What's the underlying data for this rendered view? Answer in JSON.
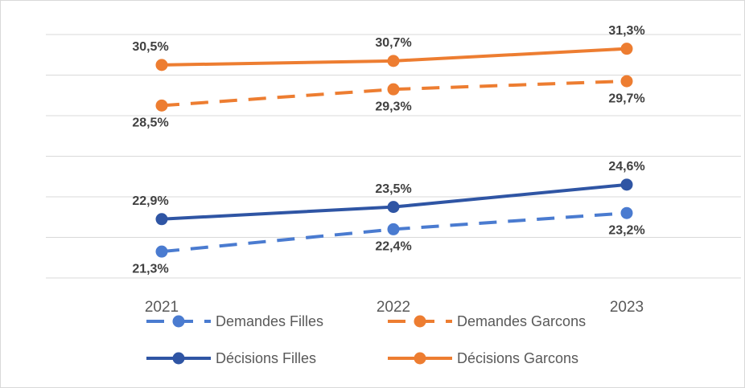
{
  "chart_data": {
    "type": "line",
    "categories": [
      "2021",
      "2022",
      "2023"
    ],
    "series": [
      {
        "name": "Demandes Filles",
        "color": "#4a7bd0",
        "dash": true,
        "values": [
          21.3,
          22.4,
          23.2
        ],
        "value_labels": [
          "21,3%",
          "22,4%",
          "23,2%"
        ],
        "label_position": "below"
      },
      {
        "name": "Demandes Garcons",
        "color": "#ed7d31",
        "dash": true,
        "values": [
          28.5,
          29.3,
          29.7
        ],
        "value_labels": [
          "28,5%",
          "29,3%",
          "29,7%"
        ],
        "label_position": "below"
      },
      {
        "name": "Décisions Filles",
        "color": "#2f55a4",
        "dash": false,
        "values": [
          22.9,
          23.5,
          24.6
        ],
        "value_labels": [
          "22,9%",
          "23,5%",
          "24,6%"
        ],
        "label_position": "above"
      },
      {
        "name": "Décisions Garcons",
        "color": "#ed7d31",
        "dash": false,
        "values": [
          30.5,
          30.7,
          31.3
        ],
        "value_labels": [
          "30,5%",
          "30,7%",
          "31,3%"
        ],
        "label_position": "above"
      }
    ],
    "ylim": [
      20,
      32
    ],
    "yticks": [
      20,
      22,
      24,
      26,
      28,
      30,
      32
    ],
    "grid": true
  }
}
